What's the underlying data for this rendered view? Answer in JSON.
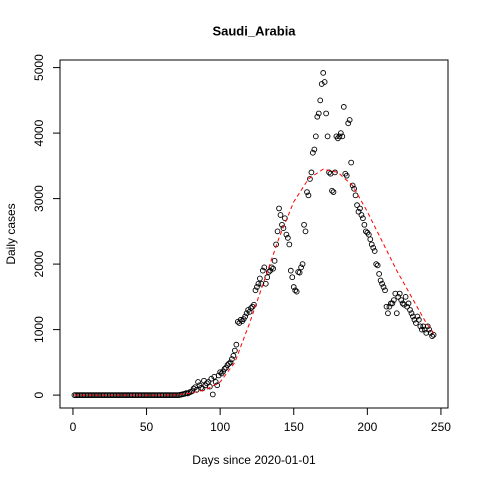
{
  "chart_data": {
    "type": "scatter",
    "title": "Saudi_Arabia",
    "x_label": "Days since 2020-01-01",
    "y_label": "Daily cases",
    "xlim": [
      -8.8,
      254.8
    ],
    "ylim": [
      -197,
      5116
    ],
    "xticks": [
      0,
      50,
      100,
      150,
      200,
      250
    ],
    "yticks": [
      0,
      1000,
      2000,
      3000,
      4000,
      5000
    ],
    "series": [
      {
        "type": "scatter",
        "color": "#000000",
        "x": [
          1,
          2,
          3,
          4,
          5,
          6,
          7,
          8,
          9,
          10,
          11,
          12,
          13,
          14,
          15,
          16,
          17,
          18,
          19,
          20,
          21,
          22,
          23,
          24,
          25,
          26,
          27,
          28,
          29,
          30,
          31,
          32,
          33,
          34,
          35,
          36,
          37,
          38,
          39,
          40,
          41,
          42,
          43,
          44,
          45,
          46,
          47,
          48,
          49,
          50,
          51,
          52,
          53,
          54,
          55,
          56,
          57,
          58,
          59,
          60,
          61,
          62,
          63,
          64,
          65,
          66,
          67,
          68,
          69,
          70,
          71,
          72,
          73,
          74,
          75,
          76,
          77,
          78,
          79,
          80,
          81,
          82,
          83,
          84,
          85,
          86,
          87,
          88,
          89,
          90,
          91,
          92,
          93,
          94,
          95,
          96,
          97,
          98,
          99,
          100,
          101,
          102,
          103,
          104,
          105,
          106,
          107,
          108,
          109,
          110,
          111,
          112,
          113,
          114,
          115,
          116,
          117,
          118,
          119,
          120,
          121,
          122,
          123,
          124,
          125,
          126,
          127,
          128,
          129,
          130,
          131,
          132,
          133,
          134,
          135,
          136,
          137,
          138,
          139,
          140,
          141,
          142,
          143,
          144,
          145,
          146,
          147,
          148,
          149,
          150,
          151,
          152,
          153,
          154,
          155,
          156,
          157,
          158,
          159,
          160,
          161,
          162,
          163,
          164,
          165,
          166,
          167,
          168,
          169,
          170,
          171,
          172,
          173,
          174,
          175,
          176,
          177,
          178,
          179,
          180,
          181,
          182,
          183,
          184,
          185,
          186,
          187,
          188,
          189,
          190,
          191,
          192,
          193,
          194,
          195,
          196,
          197,
          198,
          199,
          200,
          201,
          202,
          203,
          204,
          205,
          206,
          207,
          208,
          209,
          210,
          211,
          212,
          213,
          214,
          215,
          216,
          217,
          218,
          219,
          220,
          221,
          222,
          223,
          224,
          225,
          226,
          227,
          228,
          229,
          230,
          231,
          232,
          233,
          234,
          235,
          236,
          237,
          238,
          239,
          240,
          241,
          242,
          243,
          244,
          245
        ],
        "values": [
          0,
          0,
          0,
          0,
          0,
          0,
          0,
          0,
          0,
          0,
          0,
          0,
          0,
          0,
          0,
          0,
          0,
          0,
          0,
          0,
          0,
          0,
          0,
          0,
          0,
          0,
          0,
          0,
          0,
          0,
          0,
          0,
          0,
          0,
          0,
          0,
          0,
          0,
          0,
          0,
          0,
          0,
          0,
          0,
          0,
          0,
          0,
          0,
          0,
          0,
          0,
          0,
          0,
          0,
          0,
          0,
          0,
          0,
          0,
          0,
          0,
          0,
          0,
          0,
          0,
          0,
          0,
          0,
          0,
          0,
          0,
          0,
          5,
          10,
          15,
          20,
          30,
          25,
          40,
          50,
          60,
          100,
          120,
          80,
          200,
          150,
          110,
          100,
          220,
          150,
          180,
          200,
          130,
          250,
          10,
          280,
          200,
          150,
          300,
          350,
          330,
          360,
          400,
          420,
          460,
          480,
          500,
          550,
          600,
          680,
          770,
          1120,
          1100,
          1150,
          1130,
          1160,
          1200,
          1250,
          1300,
          1270,
          1330,
          1350,
          1380,
          1600,
          1650,
          1700,
          1780,
          1700,
          1900,
          1950,
          1700,
          1800,
          1880,
          1900,
          1950,
          1930,
          2050,
          2300,
          2500,
          2850,
          2750,
          2600,
          2550,
          2700,
          2450,
          2400,
          2300,
          1900,
          1800,
          1650,
          1600,
          1580,
          1880,
          1870,
          1950,
          2000,
          2600,
          2500,
          3100,
          3050,
          3300,
          3400,
          3700,
          3750,
          3950,
          4250,
          4300,
          4500,
          4750,
          4919,
          4780,
          4300,
          3950,
          3400,
          3380,
          3120,
          3100,
          3400,
          3950,
          3920,
          3950,
          4000,
          3950,
          4400,
          3380,
          3350,
          4150,
          4200,
          3550,
          3200,
          3150,
          3050,
          2900,
          2800,
          2850,
          2750,
          2700,
          2600,
          2500,
          2480,
          2450,
          2380,
          2300,
          2250,
          2200,
          2000,
          1980,
          1850,
          1750,
          1700,
          1650,
          1600,
          1350,
          1250,
          1350,
          1400,
          1400,
          1450,
          1550,
          1250,
          1500,
          1550,
          1450,
          1400,
          1380,
          1500,
          1350,
          1400,
          1300,
          1250,
          1200,
          1150,
          1100,
          1200,
          1150,
          1050,
          1000,
          1050,
          1000,
          950,
          1050,
          1000,
          950,
          900,
          920
        ]
      },
      {
        "type": "line",
        "color": "#ff0000",
        "x": [
          1,
          60,
          70,
          80,
          90,
          100,
          110,
          120,
          130,
          140,
          150,
          160,
          170,
          180,
          190,
          200,
          210,
          220,
          230,
          240,
          245
        ],
        "values": [
          0,
          0,
          5,
          30,
          80,
          200,
          500,
          1100,
          1750,
          2400,
          2950,
          3300,
          3450,
          3400,
          3200,
          2800,
          2350,
          1900,
          1500,
          1100,
          950
        ]
      }
    ]
  }
}
